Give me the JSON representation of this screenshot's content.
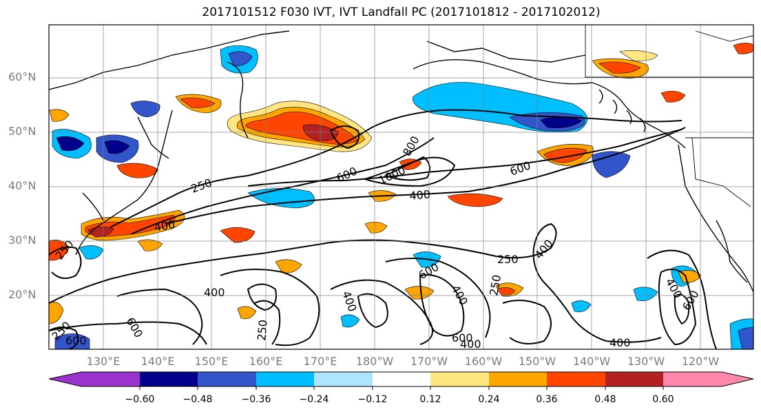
{
  "title": "2017101512 F030 IVT, IVT Landfall PC (2017101812 - 2017102012)",
  "lat_labels": [
    "60°N",
    "50°N",
    "40°N",
    "30°N",
    "20°N"
  ],
  "lon_labels": [
    "130°E",
    "140°E",
    "150°E",
    "160°E",
    "170°E",
    "180°W",
    "170°W",
    "160°W",
    "150°W",
    "140°W",
    "130°W",
    "120°W"
  ],
  "colorbar": {
    "tick_labels": [
      "−0.60",
      "−0.48",
      "−0.36",
      "−0.24",
      "−0.12",
      "0.12",
      "0.24",
      "0.36",
      "0.48",
      "0.60"
    ],
    "colors": [
      "#9933cc",
      "#00008b",
      "#3355cc",
      "#00bfff",
      "#aee4ff",
      "#ffffff",
      "#ffe680",
      "#ffa500",
      "#ff4500",
      "#b22222",
      "#ff88aa"
    ]
  },
  "contour_labels": [
    "250",
    "400",
    "600",
    "800",
    "1000",
    "600",
    "400",
    "250",
    "400",
    "250",
    "250",
    "400",
    "600",
    "400",
    "600",
    "400",
    "600",
    "250",
    "600",
    "400",
    "250",
    "400",
    "600",
    "400"
  ]
}
